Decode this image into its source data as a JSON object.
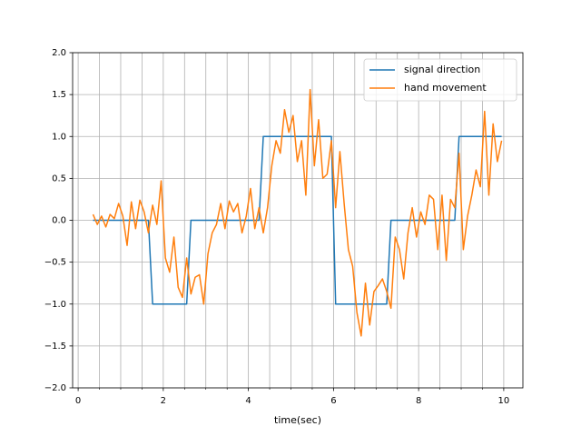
{
  "chart_data": {
    "type": "line",
    "x_label": "time(sec)",
    "x": [
      0.35,
      0.45,
      0.55,
      0.65,
      0.75,
      0.85,
      0.95,
      1.05,
      1.15,
      1.25,
      1.35,
      1.45,
      1.55,
      1.65,
      1.75,
      1.85,
      1.95,
      2.05,
      2.15,
      2.25,
      2.35,
      2.45,
      2.55,
      2.65,
      2.75,
      2.85,
      2.95,
      3.05,
      3.15,
      3.25,
      3.35,
      3.45,
      3.55,
      3.65,
      3.75,
      3.85,
      3.95,
      4.05,
      4.15,
      4.25,
      4.35,
      4.45,
      4.55,
      4.65,
      4.75,
      4.85,
      4.95,
      5.05,
      5.15,
      5.25,
      5.35,
      5.45,
      5.55,
      5.65,
      5.75,
      5.85,
      5.95,
      6.05,
      6.15,
      6.25,
      6.35,
      6.45,
      6.55,
      6.65,
      6.75,
      6.85,
      6.95,
      7.05,
      7.15,
      7.25,
      7.35,
      7.45,
      7.55,
      7.65,
      7.75,
      7.85,
      7.95,
      8.05,
      8.15,
      8.25,
      8.35,
      8.45,
      8.55,
      8.65,
      8.75,
      8.85,
      8.95,
      9.05,
      9.15,
      9.25,
      9.35,
      9.45,
      9.55,
      9.65,
      9.75,
      9.85,
      9.95
    ],
    "series": [
      {
        "name": "signal direction",
        "color": "#1f77b4",
        "values": [
          0,
          0,
          0,
          0,
          0,
          0,
          0,
          0,
          0,
          0,
          0,
          0,
          0,
          0,
          -1,
          -1,
          -1,
          -1,
          -1,
          -1,
          -1,
          -1,
          -1,
          0,
          0,
          0,
          0,
          0,
          0,
          0,
          0,
          0,
          0,
          0,
          0,
          0,
          0,
          0,
          0,
          0,
          1,
          1,
          1,
          1,
          1,
          1,
          1,
          1,
          1,
          1,
          1,
          1,
          1,
          1,
          1,
          1,
          1,
          -1,
          -1,
          -1,
          -1,
          -1,
          -1,
          -1,
          -1,
          -1,
          -1,
          -1,
          -1,
          -1,
          0,
          0,
          0,
          0,
          0,
          0,
          0,
          0,
          0,
          0,
          0,
          0,
          0,
          0,
          0,
          0,
          1,
          1,
          1,
          1,
          1,
          1,
          1,
          1,
          1,
          1,
          1
        ]
      },
      {
        "name": "hand movement",
        "color": "#ff7f0e",
        "values": [
          0.07,
          -0.05,
          0.05,
          -0.08,
          0.07,
          0.02,
          0.2,
          0.05,
          -0.3,
          0.22,
          -0.1,
          0.24,
          0.1,
          -0.15,
          0.18,
          -0.05,
          0.47,
          -0.45,
          -0.62,
          -0.2,
          -0.8,
          -0.92,
          -0.45,
          -0.88,
          -0.68,
          -0.65,
          -1.0,
          -0.4,
          -0.15,
          -0.05,
          0.2,
          -0.1,
          0.23,
          0.1,
          0.2,
          -0.15,
          0.05,
          0.38,
          -0.1,
          0.15,
          -0.15,
          0.15,
          0.65,
          0.95,
          0.8,
          1.32,
          1.05,
          1.25,
          0.7,
          0.95,
          0.3,
          1.56,
          0.65,
          1.2,
          0.5,
          0.55,
          0.95,
          0.15,
          0.82,
          0.2,
          -0.35,
          -0.55,
          -1.1,
          -1.38,
          -0.75,
          -1.25,
          -0.85,
          -0.78,
          -0.7,
          -0.85,
          -1.05,
          -0.2,
          -0.35,
          -0.7,
          -0.15,
          0.15,
          -0.2,
          0.1,
          -0.05,
          0.3,
          0.25,
          -0.35,
          0.3,
          -0.48,
          0.25,
          0.15,
          0.8,
          -0.35,
          0.05,
          0.3,
          0.6,
          0.4,
          1.3,
          0.3,
          1.15,
          0.7,
          0.95
        ]
      }
    ],
    "xlim": [
      -0.13,
      10.45
    ],
    "ylim": [
      -2,
      2
    ],
    "xticks": [
      0,
      2,
      4,
      6,
      8,
      10
    ],
    "xminorticks": [
      0.5,
      1,
      1.5,
      2.5,
      3,
      3.5,
      4.5,
      5,
      5.5,
      6.5,
      7,
      7.5,
      8.5,
      9,
      9.5
    ],
    "yticks": [
      {
        "value": -2,
        "label": "−2.0"
      },
      {
        "value": -1.5,
        "label": "−1.5"
      },
      {
        "value": -1,
        "label": "−1.0"
      },
      {
        "value": -0.5,
        "label": "−0.5"
      },
      {
        "value": 0,
        "label": "0.0"
      },
      {
        "value": 0.5,
        "label": "0.5"
      },
      {
        "value": 1,
        "label": "1.0"
      },
      {
        "value": 1.5,
        "label": "1.5"
      },
      {
        "value": 2,
        "label": "2.0"
      }
    ],
    "grid": true,
    "legend_loc": "upper right"
  }
}
